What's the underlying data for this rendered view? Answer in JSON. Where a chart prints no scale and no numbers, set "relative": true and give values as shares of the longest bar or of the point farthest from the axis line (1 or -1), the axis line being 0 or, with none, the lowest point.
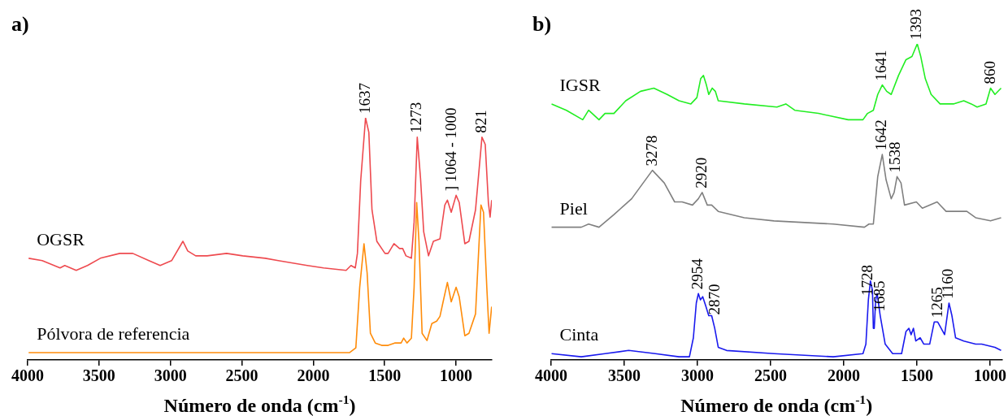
{
  "chart_data": [
    {
      "type": "line",
      "title": "a)",
      "xlabel": "Número de onda (cm$^{-1}$)",
      "relative": true,
      "marker": "none",
      "xlim": [
        4000,
        750
      ],
      "xticks": [
        4000,
        3500,
        3000,
        2500,
        2000,
        1500,
        1000
      ],
      "series": [
        {
          "name": "OGSR",
          "color": "#ee4a4f",
          "x": [
            3993,
            3898,
            3773,
            3740,
            3660,
            3581,
            3491,
            3355,
            3264,
            3151,
            3072,
            2992,
            2913,
            2879,
            2823,
            2743,
            2607,
            2494,
            2336,
            2245,
            2042,
            1928,
            1770,
            1736,
            1706,
            1691,
            1668,
            1634,
            1611,
            1589,
            1555,
            1498,
            1476,
            1435,
            1396,
            1374,
            1351,
            1313,
            1294,
            1272,
            1249,
            1227,
            1193,
            1159,
            1113,
            1079,
            1061,
            1034,
            1000,
            978,
            939,
            910,
            864,
            819,
            796,
            774,
            762,
            751
          ],
          "values": [
            0.42,
            0.41,
            0.38,
            0.39,
            0.37,
            0.39,
            0.42,
            0.44,
            0.44,
            0.41,
            0.39,
            0.41,
            0.49,
            0.45,
            0.43,
            0.43,
            0.44,
            0.43,
            0.42,
            0.41,
            0.39,
            0.38,
            0.37,
            0.39,
            0.38,
            0.44,
            0.74,
            1.0,
            0.94,
            0.62,
            0.49,
            0.44,
            0.44,
            0.48,
            0.46,
            0.46,
            0.43,
            0.42,
            0.57,
            0.92,
            0.75,
            0.53,
            0.43,
            0.49,
            0.5,
            0.64,
            0.66,
            0.61,
            0.68,
            0.65,
            0.48,
            0.49,
            0.62,
            0.92,
            0.89,
            0.65,
            0.59,
            0.66
          ]
        },
        {
          "name": "Pólvora de referencia",
          "color": "#ff8c0a",
          "x": [
            3993,
            3513,
            3015,
            2913,
            2834,
            2381,
            2359,
            2313,
            1747,
            1702,
            1675,
            1645,
            1623,
            1600,
            1566,
            1521,
            1476,
            1430,
            1385,
            1367,
            1344,
            1313,
            1294,
            1276,
            1260,
            1238,
            1204,
            1170,
            1136,
            1113,
            1091,
            1061,
            1034,
            1000,
            978,
            939,
            910,
            864,
            826,
            808,
            785,
            769,
            751
          ],
          "values": [
            0.03,
            0.03,
            0.03,
            0.03,
            0.03,
            0.03,
            0.03,
            0.03,
            0.03,
            0.05,
            0.3,
            0.48,
            0.36,
            0.11,
            0.07,
            0.06,
            0.06,
            0.07,
            0.07,
            0.09,
            0.07,
            0.09,
            0.3,
            0.65,
            0.49,
            0.11,
            0.08,
            0.15,
            0.16,
            0.18,
            0.24,
            0.32,
            0.24,
            0.3,
            0.26,
            0.1,
            0.11,
            0.19,
            0.64,
            0.61,
            0.3,
            0.11,
            0.22
          ]
        }
      ],
      "annotations": [
        {
          "text": "1637",
          "x": 1634,
          "y": 1.0
        },
        {
          "text": "1273",
          "x": 1272,
          "y": 0.92
        },
        {
          "text": "] 1064 - 1000",
          "x": 1030,
          "y": 0.68
        },
        {
          "text": "821",
          "x": 819,
          "y": 0.92
        }
      ]
    },
    {
      "type": "line",
      "title": "b)",
      "xlabel": "Número de onda (cm$^{-1}$)",
      "relative": true,
      "marker": "none",
      "xlim": [
        4000,
        920
      ],
      "xticks": [
        4000,
        3500,
        3000,
        2500,
        2000,
        1500,
        1000
      ],
      "series": [
        {
          "name": "IGSR",
          "color": "#22ee22",
          "x": [
            3997,
            3896,
            3784,
            3744,
            3673,
            3632,
            3571,
            3490,
            3389,
            3298,
            3207,
            3126,
            3045,
            3004,
            2978,
            2959,
            2939,
            2923,
            2899,
            2878,
            2858,
            2680,
            2457,
            2396,
            2335,
            2173,
            1970,
            1869,
            1838,
            1798,
            1768,
            1737,
            1707,
            1676,
            1626,
            1575,
            1534,
            1498,
            1474,
            1443,
            1403,
            1342,
            1251,
            1180,
            1129,
            1089,
            1028,
            997,
            967,
            925
          ],
          "values": [
            0.81,
            0.79,
            0.76,
            0.79,
            0.76,
            0.78,
            0.78,
            0.82,
            0.85,
            0.86,
            0.84,
            0.82,
            0.81,
            0.83,
            0.89,
            0.9,
            0.87,
            0.84,
            0.86,
            0.85,
            0.82,
            0.81,
            0.8,
            0.81,
            0.79,
            0.78,
            0.76,
            0.76,
            0.78,
            0.79,
            0.84,
            0.87,
            0.85,
            0.84,
            0.9,
            0.95,
            0.96,
            1.0,
            0.96,
            0.89,
            0.84,
            0.81,
            0.81,
            0.82,
            0.81,
            0.8,
            0.81,
            0.86,
            0.84,
            0.86
          ]
        },
        {
          "name": "Piel",
          "color": "#808080",
          "x": [
            3997,
            3855,
            3794,
            3744,
            3673,
            3571,
            3450,
            3308,
            3227,
            3156,
            3105,
            3034,
            2994,
            2968,
            2933,
            2903,
            2858,
            2680,
            2477,
            2072,
            1859,
            1828,
            1798,
            1768,
            1737,
            1711,
            1676,
            1656,
            1636,
            1609,
            1585,
            1504,
            1463,
            1362,
            1301,
            1220,
            1159,
            1099,
            997,
            925
          ],
          "values": [
            0.42,
            0.42,
            0.42,
            0.43,
            0.42,
            0.46,
            0.51,
            0.6,
            0.56,
            0.5,
            0.5,
            0.49,
            0.51,
            0.53,
            0.49,
            0.49,
            0.47,
            0.45,
            0.44,
            0.43,
            0.42,
            0.43,
            0.43,
            0.58,
            0.65,
            0.57,
            0.51,
            0.53,
            0.58,
            0.56,
            0.49,
            0.5,
            0.48,
            0.5,
            0.47,
            0.47,
            0.47,
            0.45,
            0.44,
            0.45
          ]
        },
        {
          "name": "Cinta",
          "color": "#1a1aee",
          "x": [
            3997,
            3794,
            3632,
            3470,
            3288,
            3126,
            3055,
            3028,
            3008,
            2994,
            2980,
            2964,
            2943,
            2923,
            2903,
            2882,
            2858,
            2801,
            2477,
            2072,
            1869,
            1849,
            1832,
            1818,
            1804,
            1798,
            1792,
            1782,
            1772,
            1751,
            1717,
            1666,
            1605,
            1575,
            1555,
            1540,
            1524,
            1508,
            1478,
            1453,
            1413,
            1382,
            1358,
            1311,
            1281,
            1261,
            1236,
            1180,
            1099,
            1058,
            967,
            925
          ],
          "values": [
            0.02,
            0.01,
            0.02,
            0.03,
            0.02,
            0.01,
            0.01,
            0.07,
            0.18,
            0.21,
            0.19,
            0.2,
            0.17,
            0.14,
            0.14,
            0.1,
            0.04,
            0.03,
            0.02,
            0.01,
            0.02,
            0.05,
            0.19,
            0.25,
            0.22,
            0.1,
            0.1,
            0.19,
            0.21,
            0.14,
            0.05,
            0.02,
            0.02,
            0.09,
            0.1,
            0.08,
            0.1,
            0.06,
            0.07,
            0.05,
            0.05,
            0.12,
            0.12,
            0.08,
            0.18,
            0.14,
            0.07,
            0.06,
            0.05,
            0.05,
            0.04,
            0.03
          ]
        }
      ],
      "annotations": [
        {
          "text": "1641",
          "x": 1737,
          "y": 0.87
        },
        {
          "text": "1393",
          "x": 1498,
          "y": 1.0
        },
        {
          "text": "860",
          "x": 997,
          "y": 0.86
        },
        {
          "text": "3278",
          "x": 3308,
          "y": 0.6
        },
        {
          "text": "2920",
          "x": 2968,
          "y": 0.53
        },
        {
          "text": "1642",
          "x": 1737,
          "y": 0.65
        },
        {
          "text": "1538",
          "x": 1646,
          "y": 0.58
        },
        {
          "text": "2954",
          "x": 2994,
          "y": 0.21
        },
        {
          "text": "2870",
          "x": 2880,
          "y": 0.13
        },
        {
          "text": "1728",
          "x": 1832,
          "y": 0.19
        },
        {
          "text": "1685",
          "x": 1751,
          "y": 0.14
        },
        {
          "text": "1265",
          "x": 1358,
          "y": 0.12
        },
        {
          "text": "1160",
          "x": 1281,
          "y": 0.18
        }
      ]
    }
  ]
}
